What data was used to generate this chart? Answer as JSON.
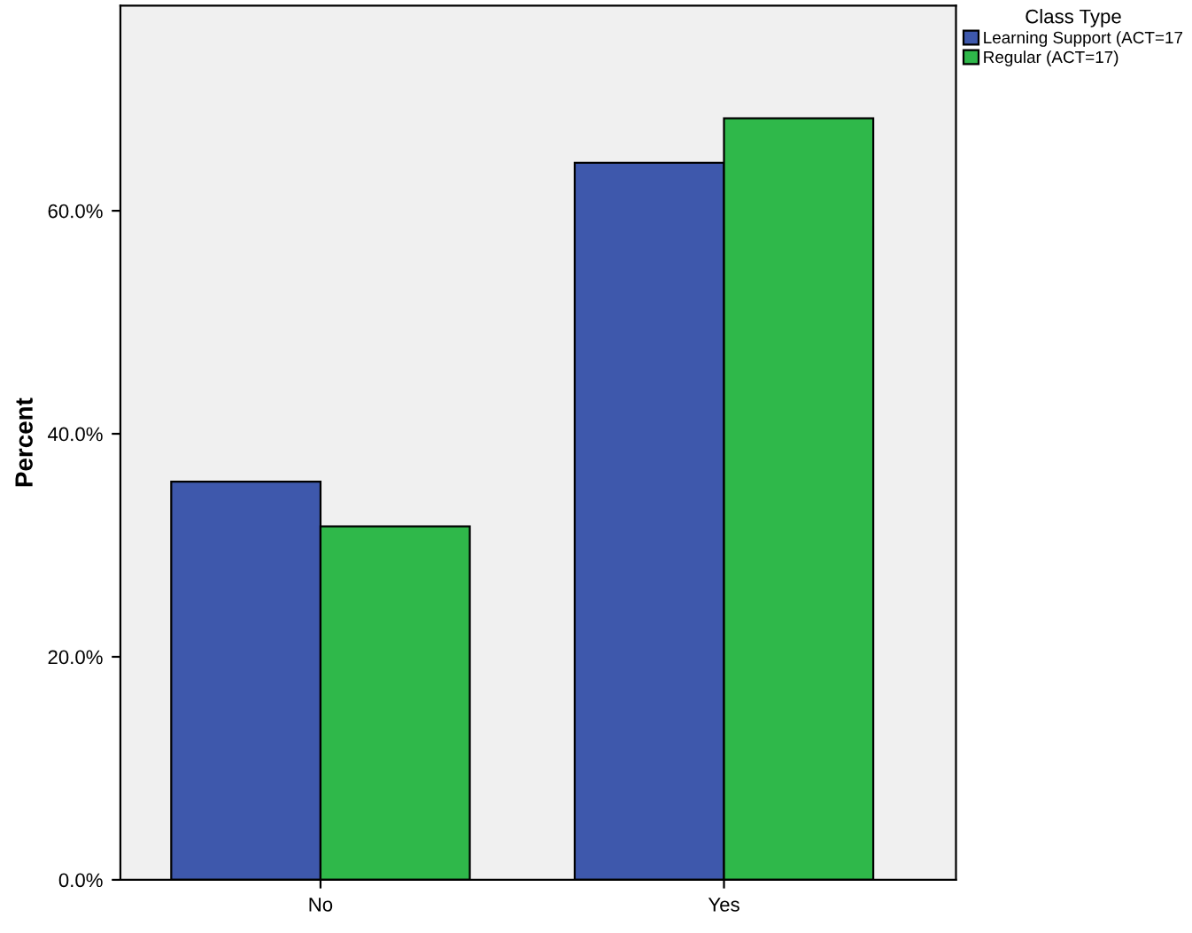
{
  "chart_data": {
    "type": "bar",
    "ylabel": "Percent",
    "legend_title": "Class Type",
    "categories": [
      "No",
      "Yes"
    ],
    "series": [
      {
        "name": "Learning Support (ACT=17",
        "color": "#3e58ac",
        "values": [
          35.7,
          64.3
        ]
      },
      {
        "name": "Regular (ACT=17)",
        "color": "#2fb84a",
        "values": [
          31.7,
          68.3
        ]
      }
    ],
    "ylim": [
      0,
      78.4
    ],
    "yticks": [
      {
        "value": 0,
        "label": "0.0%"
      },
      {
        "value": 20,
        "label": "20.0%"
      },
      {
        "value": 40,
        "label": "40.0%"
      },
      {
        "value": 60,
        "label": "60.0%"
      }
    ],
    "grid": false,
    "legend": "top right"
  }
}
